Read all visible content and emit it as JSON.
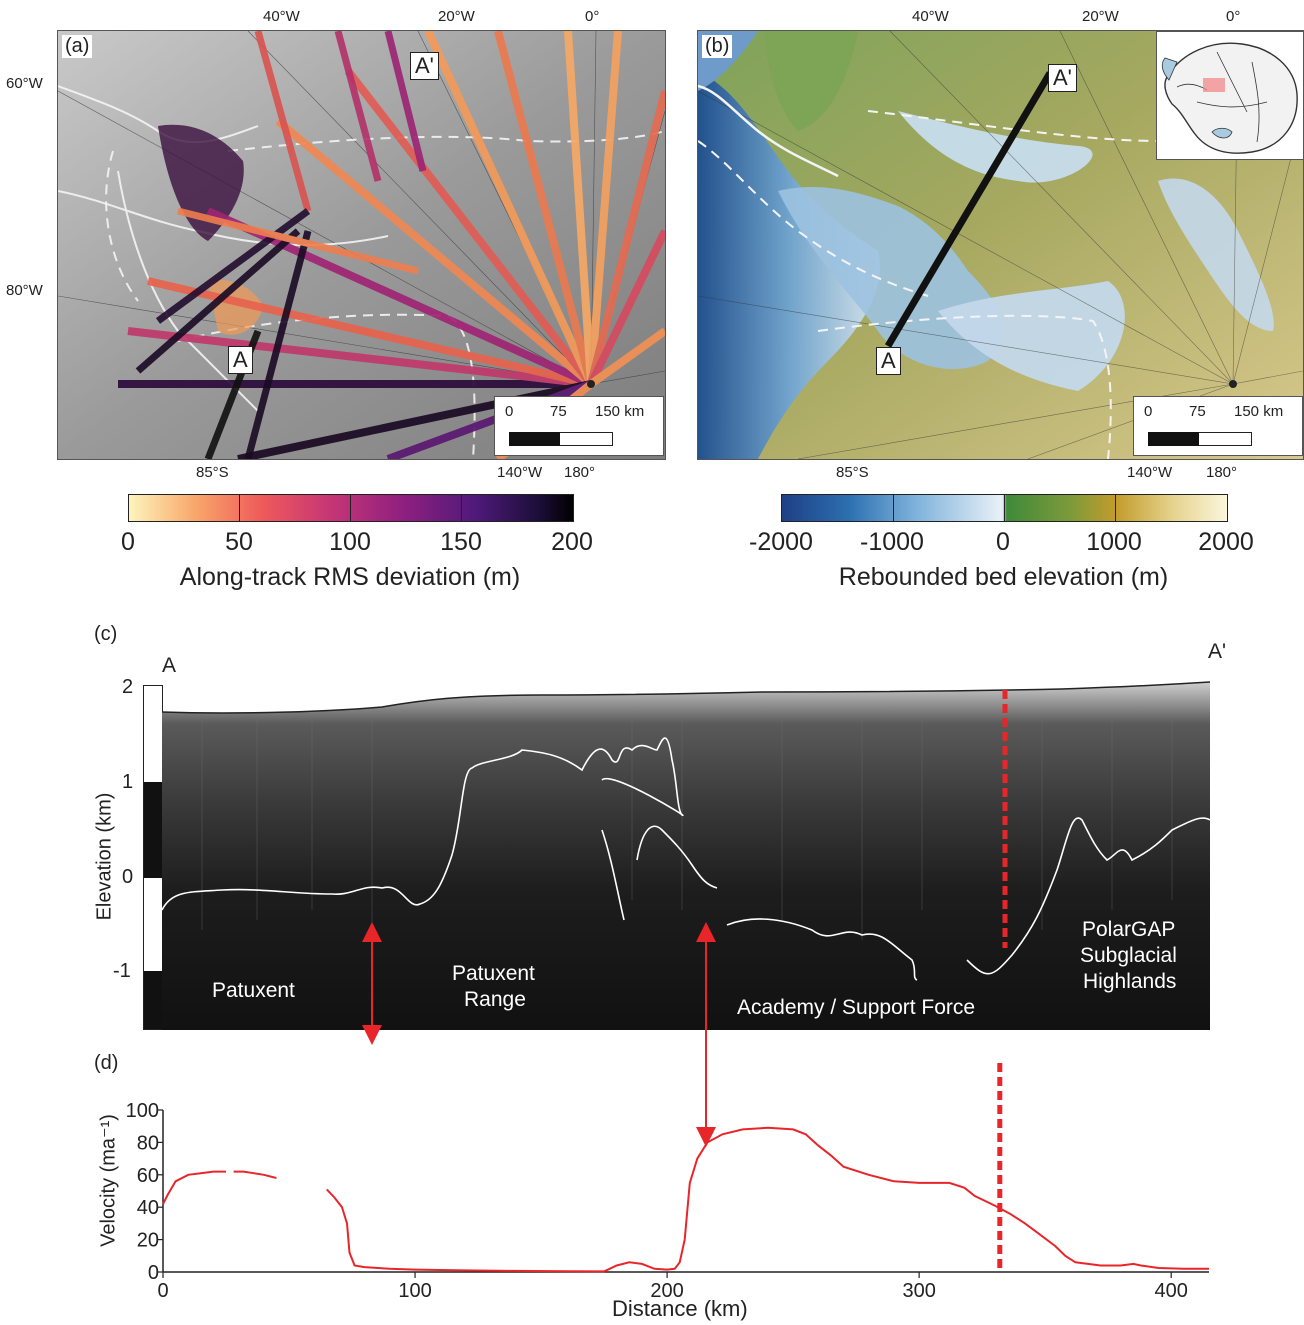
{
  "panel_a": {
    "tag": "(a)",
    "lon_labels": [
      "40°W",
      "20°W",
      "0°"
    ],
    "lat_labels": [
      "60°W",
      "80°W"
    ],
    "bottom_labels": [
      "85°S",
      "140°W",
      "180°"
    ],
    "marker_a": "A",
    "marker_a_prime": "A'",
    "scale": {
      "t0": "0",
      "t1": "75",
      "t2": "150 km"
    },
    "colorbar": {
      "ticks": [
        "0",
        "50",
        "100",
        "150",
        "200"
      ],
      "title": "Along-track RMS deviation (m)"
    }
  },
  "panel_b": {
    "tag": "(b)",
    "lon_labels": [
      "40°W",
      "20°W",
      "0°"
    ],
    "bottom_labels": [
      "85°S",
      "140°W",
      "180°"
    ],
    "marker_a": "A",
    "marker_a_prime": "A'",
    "scale": {
      "t0": "0",
      "t1": "75",
      "t2": "150 km"
    },
    "colorbar": {
      "ticks": [
        "-2000",
        "-1000",
        "0",
        "1000",
        "2000"
      ],
      "title": "Rebounded bed elevation (m)"
    }
  },
  "panel_c": {
    "tag": "(c)",
    "left_end": "A",
    "right_end": "A'",
    "ylabel": "Elevation (km)",
    "yticks": [
      "2",
      "1",
      "0",
      "-1"
    ],
    "regions": {
      "patuxent": "Patuxent",
      "patuxent_range_1": "Patuxent",
      "patuxent_range_2": "Range",
      "academy": "Academy / Support Force",
      "polargap_1": "PolarGAP",
      "polargap_2": "Subglacial",
      "polargap_3": "Highlands"
    }
  },
  "panel_d": {
    "tag": "(d)"
  },
  "chart_data": {
    "type": "line",
    "title": "",
    "xlabel": "Distance (km)",
    "ylabel": "Velocity (ma⁻¹)",
    "xlim": [
      0,
      415
    ],
    "ylim": [
      0,
      100
    ],
    "xticks": [
      "0",
      "100",
      "200",
      "300",
      "400"
    ],
    "yticks": [
      "0",
      "20",
      "40",
      "60",
      "80",
      "100"
    ],
    "series": [
      {
        "color": "#e8262a",
        "segments": [
          [
            [
              0,
              42
            ],
            [
              2,
              48
            ],
            [
              5,
              56
            ],
            [
              10,
              60
            ],
            [
              15,
              61
            ],
            [
              20,
              62
            ],
            [
              25,
              62
            ]
          ],
          [
            [
              28,
              62
            ],
            [
              32,
              62
            ],
            [
              36,
              61
            ],
            [
              40,
              60
            ],
            [
              45,
              58
            ]
          ],
          [
            [
              65,
              51
            ],
            [
              68,
              46
            ],
            [
              71,
              40
            ],
            [
              73,
              30
            ],
            [
              74,
              12
            ],
            [
              76,
              4
            ],
            [
              80,
              3
            ],
            [
              90,
              2
            ],
            [
              100,
              1.5
            ],
            [
              120,
              1
            ],
            [
              140,
              0.7
            ],
            [
              160,
              0.5
            ],
            [
              175,
              0.4
            ],
            [
              180,
              4
            ],
            [
              185,
              6
            ],
            [
              190,
              5
            ],
            [
              195,
              2
            ],
            [
              200,
              1.5
            ],
            [
              203,
              2
            ],
            [
              205,
              6
            ],
            [
              207,
              20
            ],
            [
              209,
              55
            ],
            [
              212,
              70
            ],
            [
              216,
              80
            ],
            [
              222,
              85
            ],
            [
              230,
              88
            ],
            [
              240,
              89
            ],
            [
              250,
              88
            ],
            [
              255,
              85
            ],
            [
              260,
              78
            ],
            [
              265,
              72
            ],
            [
              270,
              65
            ],
            [
              280,
              60
            ],
            [
              290,
              56
            ],
            [
              300,
              55
            ],
            [
              312,
              55
            ],
            [
              318,
              52
            ],
            [
              322,
              47
            ],
            [
              330,
              41
            ],
            [
              336,
              36
            ],
            [
              342,
              30
            ],
            [
              348,
              23
            ],
            [
              354,
              16
            ],
            [
              358,
              10
            ],
            [
              362,
              6
            ],
            [
              372,
              4
            ],
            [
              380,
              4
            ],
            [
              385,
              5
            ],
            [
              388,
              4
            ],
            [
              395,
              2.5
            ],
            [
              405,
              2
            ],
            [
              415,
              2
            ]
          ]
        ]
      }
    ],
    "annotations": {
      "dashed_line_x_km": 332,
      "arrows_x_km": [
        82,
        215
      ]
    }
  }
}
